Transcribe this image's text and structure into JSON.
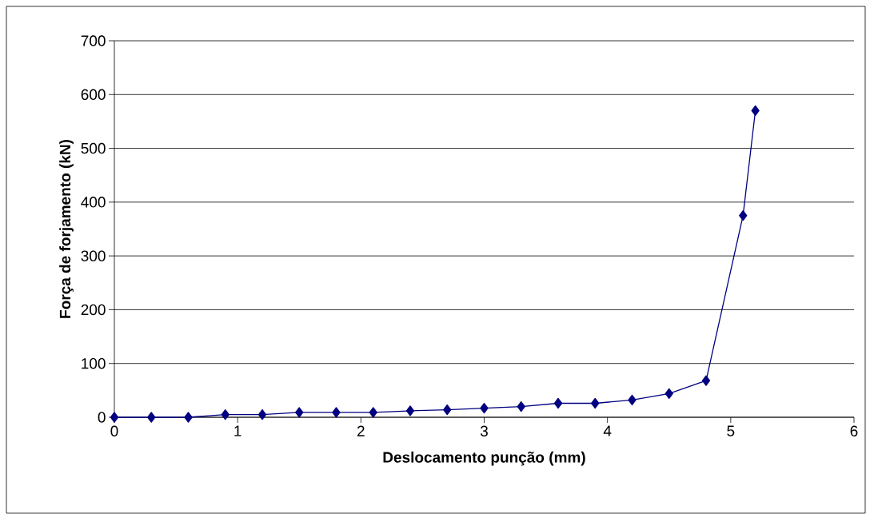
{
  "chart_data": {
    "type": "line",
    "xlabel": "Deslocamento punção (mm)",
    "ylabel": "Força de forjamento (kN)",
    "x": [
      0,
      0.3,
      0.6,
      0.9,
      1.2,
      1.5,
      1.8,
      2.1,
      2.4,
      2.7,
      3.0,
      3.3,
      3.6,
      3.9,
      4.2,
      4.5,
      4.8,
      5.1,
      5.2
    ],
    "series": [
      {
        "color": "#000080",
        "values": [
          0,
          0,
          0,
          5,
          5,
          9,
          9,
          9,
          12,
          14,
          17,
          20,
          26,
          26,
          32,
          44,
          68,
          375,
          570
        ]
      }
    ],
    "xlim": [
      0,
      6
    ],
    "ylim": [
      0,
      700
    ],
    "xticks": [
      0,
      1,
      2,
      3,
      4,
      5,
      6
    ],
    "yticks": [
      0,
      100,
      200,
      300,
      400,
      500,
      600,
      700
    ],
    "grid": "y",
    "marker": "diamond",
    "line_style": "solid"
  }
}
